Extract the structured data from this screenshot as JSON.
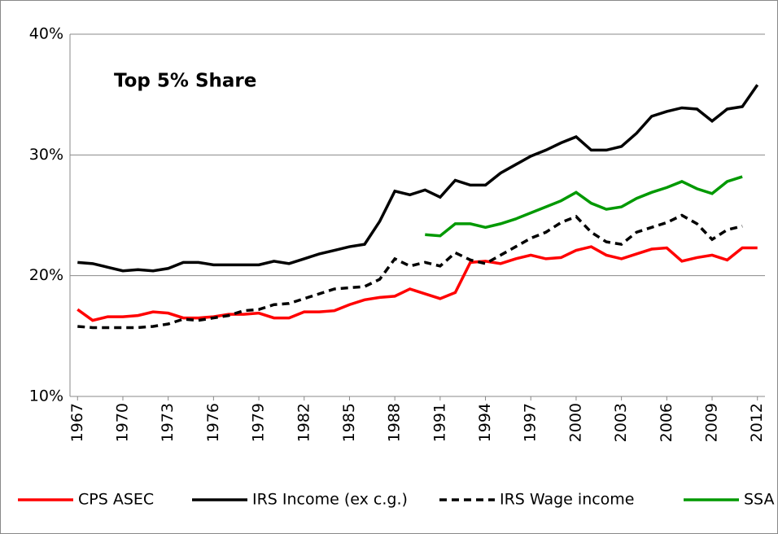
{
  "chart_data": {
    "type": "line",
    "annotation": "Top 5% Share",
    "x": [
      1967,
      1968,
      1969,
      1970,
      1971,
      1972,
      1973,
      1974,
      1975,
      1976,
      1977,
      1978,
      1979,
      1980,
      1981,
      1982,
      1983,
      1984,
      1985,
      1986,
      1987,
      1988,
      1989,
      1990,
      1991,
      1992,
      1993,
      1994,
      1995,
      1996,
      1997,
      1998,
      1999,
      2000,
      2001,
      2002,
      2003,
      2004,
      2005,
      2006,
      2007,
      2008,
      2009,
      2010,
      2011,
      2012
    ],
    "xlim": [
      1966.5,
      2012.5
    ],
    "xticks": [
      1967,
      1970,
      1973,
      1976,
      1979,
      1982,
      1985,
      1988,
      1991,
      1994,
      1997,
      2000,
      2003,
      2006,
      2009,
      2012
    ],
    "ylim": [
      10,
      40
    ],
    "yticks": [
      {
        "value": 10,
        "label": "10%"
      },
      {
        "value": 20,
        "label": "20%"
      },
      {
        "value": 30,
        "label": "30%"
      },
      {
        "value": 40,
        "label": "40%"
      }
    ],
    "grid": true,
    "legend": "bottom",
    "series": [
      {
        "name": "CPS ASEC",
        "color": "#ff0000",
        "style": "solid",
        "values": [
          17.2,
          16.3,
          16.6,
          16.6,
          16.7,
          17.0,
          16.9,
          16.5,
          16.5,
          16.6,
          16.8,
          16.8,
          16.9,
          16.5,
          16.5,
          17.0,
          17.0,
          17.1,
          17.6,
          18.0,
          18.2,
          18.3,
          18.9,
          18.5,
          18.1,
          18.6,
          21.1,
          21.2,
          21.0,
          21.4,
          21.7,
          21.4,
          21.5,
          22.1,
          22.4,
          21.7,
          21.4,
          21.8,
          22.2,
          22.3,
          21.2,
          21.5,
          21.7,
          21.3,
          22.3,
          22.3
        ]
      },
      {
        "name": "IRS Income (ex c.g.)",
        "color": "#000000",
        "style": "solid",
        "values": [
          21.1,
          21.0,
          20.7,
          20.4,
          20.5,
          20.4,
          20.6,
          21.1,
          21.1,
          20.9,
          20.9,
          20.9,
          20.9,
          21.2,
          21.0,
          21.4,
          21.8,
          22.1,
          22.4,
          22.6,
          24.5,
          27.0,
          26.7,
          27.1,
          26.5,
          27.9,
          27.5,
          27.5,
          28.5,
          29.2,
          29.9,
          30.4,
          31.0,
          31.5,
          30.4,
          30.4,
          30.7,
          31.8,
          33.2,
          33.6,
          33.9,
          33.8,
          32.8,
          33.8,
          34.0,
          35.8
        ]
      },
      {
        "name": "IRS Wage income",
        "color": "#000000",
        "style": "dashed",
        "values": [
          15.8,
          15.7,
          15.7,
          15.7,
          15.7,
          15.8,
          16.0,
          16.4,
          16.3,
          16.5,
          16.7,
          17.1,
          17.2,
          17.6,
          17.7,
          18.1,
          18.5,
          18.9,
          19.0,
          19.1,
          19.7,
          21.4,
          20.8,
          21.1,
          20.8,
          21.9,
          21.3,
          21.0,
          21.7,
          22.4,
          23.1,
          23.6,
          24.4,
          24.9,
          23.6,
          22.8,
          22.6,
          23.6,
          24.0,
          24.4,
          25.0,
          24.3,
          23.0,
          23.8,
          24.1,
          null
        ]
      },
      {
        "name": "SSA",
        "color": "#009900",
        "style": "solid",
        "values": [
          null,
          null,
          null,
          null,
          null,
          null,
          null,
          null,
          null,
          null,
          null,
          null,
          null,
          null,
          null,
          null,
          null,
          null,
          null,
          null,
          null,
          null,
          null,
          23.4,
          23.3,
          24.3,
          24.3,
          24.0,
          24.3,
          24.7,
          25.2,
          25.7,
          26.2,
          26.9,
          26.0,
          25.5,
          25.7,
          26.4,
          26.9,
          27.3,
          27.8,
          27.2,
          26.8,
          27.8,
          28.2,
          null
        ]
      }
    ]
  }
}
